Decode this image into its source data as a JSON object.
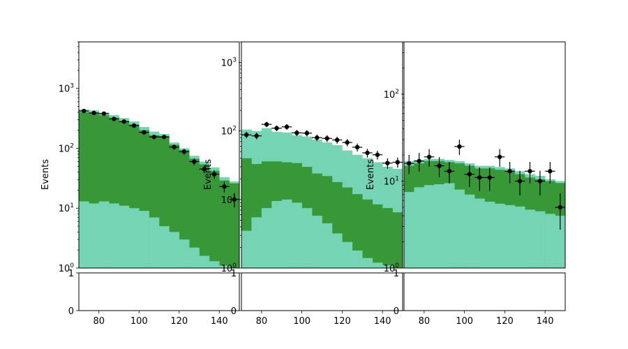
{
  "colors": {
    "light": "#74d4b4",
    "dark": "#389838",
    "data": "#000000",
    "frame": "#000000"
  },
  "chart_data": [
    {
      "type": "bar",
      "stacked_histogram": true,
      "yscale": "log",
      "xlim": [
        70,
        150
      ],
      "ylim": [
        1,
        6000
      ],
      "ylabel": "Events",
      "yticks": [
        1,
        10,
        100,
        1000
      ],
      "ytick_labels": [
        "10^0",
        "10^1",
        "10^2",
        "10^3"
      ],
      "xticks": [
        80,
        100,
        120,
        140
      ],
      "bin_edges": [
        70,
        75,
        80,
        85,
        90,
        95,
        100,
        105,
        110,
        115,
        120,
        125,
        130,
        135,
        140,
        145,
        150
      ],
      "series": [
        {
          "color": "light",
          "values": [
            13,
            12,
            13,
            12,
            11,
            10,
            9,
            7,
            5,
            4,
            3,
            2.2,
            1.6,
            1.3,
            1.1,
            1.0
          ]
        },
        {
          "color": "dark",
          "values": [
            400,
            392,
            356,
            325,
            287,
            250,
            201,
            165,
            160,
            115,
            93,
            67,
            54,
            42,
            29,
            26
          ]
        },
        {
          "color": "light",
          "values": [
            445,
            430,
            395,
            360,
            320,
            282,
            227,
            190,
            174,
            125,
            100,
            75,
            60,
            48,
            33,
            28
          ]
        }
      ],
      "data_points": {
        "x": [
          72.5,
          77.5,
          82.5,
          87.5,
          92.5,
          97.5,
          102.5,
          107.5,
          112.5,
          117.5,
          122.5,
          127.5,
          132.5,
          137.5,
          142.5,
          147.5
        ],
        "y": [
          420,
          390,
          380,
          310,
          280,
          240,
          185,
          155,
          155,
          105,
          88,
          60,
          45,
          37,
          23,
          14
        ]
      }
    },
    {
      "type": "bar",
      "stacked_histogram": true,
      "yscale": "log",
      "xlim": [
        70,
        150
      ],
      "ylim": [
        1,
        2000
      ],
      "ylabel": "Events",
      "yticks": [
        1,
        10,
        100,
        1000
      ],
      "ytick_labels": [
        "10^0",
        "10^1",
        "10^2",
        "10^3"
      ],
      "xticks": [
        80,
        100,
        120,
        140
      ],
      "bin_edges": [
        70,
        75,
        80,
        85,
        90,
        95,
        100,
        105,
        110,
        115,
        120,
        125,
        130,
        135,
        140,
        145,
        150
      ],
      "series": [
        {
          "color": "light",
          "values": [
            3.5,
            5.5,
            7.5,
            9.5,
            10,
            9,
            7.5,
            5.8,
            4.5,
            3.2,
            2.4,
            1.8,
            1.4,
            1.2,
            1.1,
            1.0
          ]
        },
        {
          "color": "dark",
          "values": [
            40,
            33,
            36,
            36,
            35,
            34,
            30,
            24,
            22,
            18,
            15,
            12,
            10,
            8.5,
            7.5,
            6.5
          ]
        },
        {
          "color": "light",
          "values": [
            105,
            100,
            110,
            97,
            95,
            87,
            83,
            75,
            68,
            62,
            52,
            45,
            40,
            35,
            30,
            28
          ]
        }
      ],
      "data_points": {
        "x": [
          72.5,
          77.5,
          82.5,
          87.5,
          92.5,
          97.5,
          102.5,
          107.5,
          112.5,
          117.5,
          122.5,
          127.5,
          132.5,
          137.5,
          142.5,
          147.5
        ],
        "y": [
          88,
          85,
          125,
          110,
          115,
          94,
          93,
          80,
          78,
          74,
          68,
          58,
          48,
          45,
          34,
          35
        ]
      }
    },
    {
      "type": "bar",
      "stacked_histogram": true,
      "yscale": "log",
      "xlim": [
        70,
        150
      ],
      "ylim": [
        1,
        400
      ],
      "ylabel": "Events",
      "yticks": [
        1,
        10,
        100
      ],
      "ytick_labels": [
        "10^0",
        "10^1",
        "10^2"
      ],
      "xticks": [
        80,
        100,
        120,
        140
      ],
      "bin_edges": [
        70,
        75,
        80,
        85,
        90,
        95,
        100,
        105,
        110,
        115,
        120,
        125,
        130,
        135,
        140,
        145,
        150
      ],
      "series": [
        {
          "color": "light",
          "values": [
            7.5,
            8.5,
            9,
            9.2,
            9.5,
            8,
            7,
            6.3,
            5.8,
            5.5,
            5.3,
            5.1,
            4.7,
            4.5,
            4.2,
            4.0
          ]
        },
        {
          "color": "dark",
          "values": [
            15,
            16,
            17,
            17,
            16.5,
            16,
            15,
            14,
            14,
            13.5,
            13,
            12,
            11,
            10.5,
            10,
            9.5
          ]
        },
        {
          "color": "light",
          "values": [
            17,
            17.5,
            18,
            18,
            17.5,
            17,
            16,
            15,
            15,
            14.5,
            14,
            13,
            12,
            11.5,
            10.5,
            10
          ]
        }
      ],
      "data_points": {
        "x": [
          72.5,
          77.5,
          82.5,
          87.5,
          92.5,
          97.5,
          102.5,
          107.5,
          112.5,
          117.5,
          122.5,
          127.5,
          132.5,
          137.5,
          142.5,
          147.5
        ],
        "y": [
          16,
          17,
          19,
          15,
          13,
          25,
          12,
          11,
          11,
          19,
          13,
          10,
          13,
          10,
          13,
          5
        ]
      }
    }
  ],
  "ratio_panels": {
    "ylim": [
      0,
      1
    ],
    "ytick_labels": [
      "0",
      "1"
    ]
  }
}
